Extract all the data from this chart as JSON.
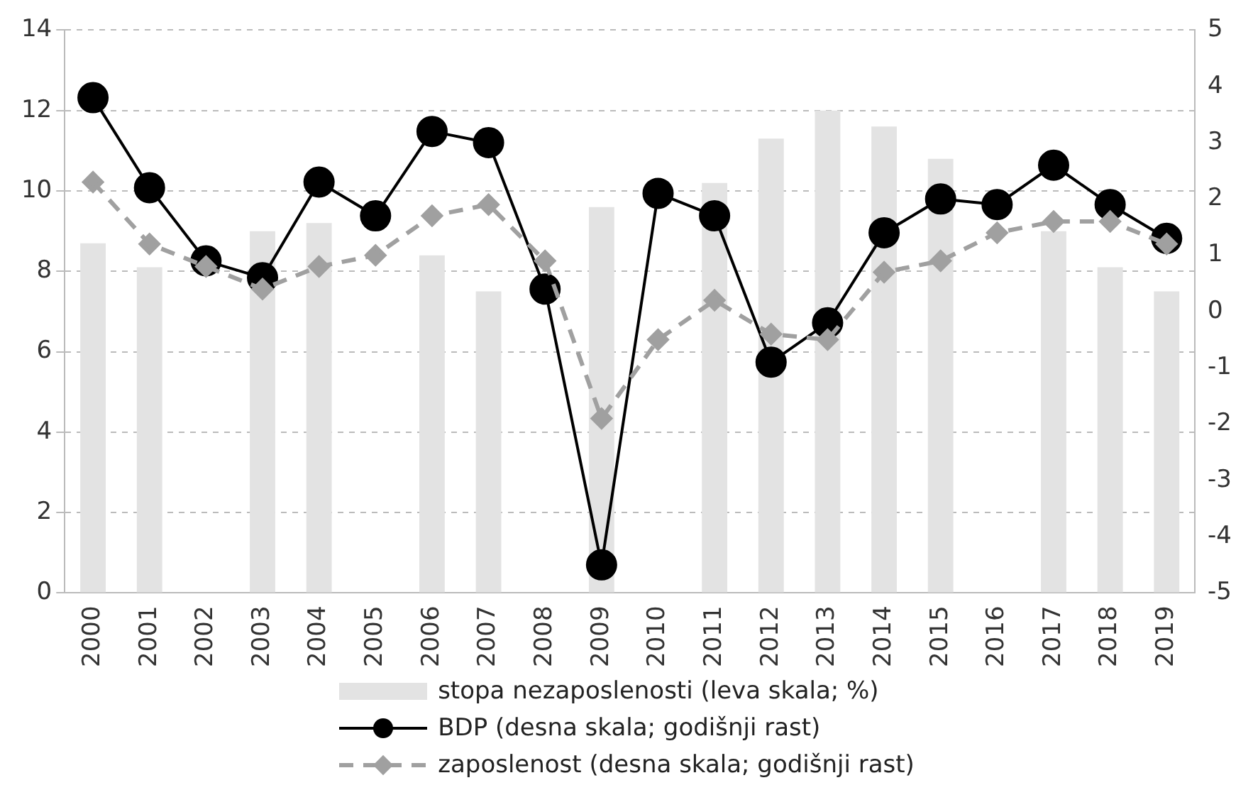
{
  "chart_data": {
    "type": "bar",
    "categories": [
      "2000",
      "2001",
      "2002",
      "2003",
      "2004",
      "2005",
      "2006",
      "2007",
      "2008",
      "2009",
      "2010",
      "2011",
      "2012",
      "2013",
      "2014",
      "2015",
      "2016",
      "2017",
      "2018",
      "2019"
    ],
    "series": [
      {
        "name": "stopa nezaposlenosti (leva skala; %)",
        "color": "#e3e3e3",
        "values": [
          8.7,
          8.1,
          null,
          9.0,
          9.2,
          null,
          8.4,
          7.5,
          null,
          9.6,
          null,
          10.2,
          11.3,
          12.0,
          11.6,
          10.8,
          null,
          9.0,
          8.1,
          7.5
        ]
      },
      {
        "name": "BDP (desna skala; godišnji rast)",
        "type": "line",
        "axis": "y2",
        "color": "#000000",
        "marker": "circle",
        "line_style": "solid",
        "values": [
          3.8,
          2.2,
          0.9,
          0.6,
          2.3,
          1.7,
          3.2,
          3.0,
          0.4,
          -4.5,
          2.1,
          1.7,
          -0.9,
          -0.2,
          1.4,
          2.0,
          1.9,
          2.6,
          1.9,
          1.3
        ]
      },
      {
        "name": "zaposlenost (desna skala; godišnji rast)",
        "type": "line",
        "axis": "y2",
        "color": "#a0a0a0",
        "marker": "diamond",
        "line_style": "dashed",
        "values": [
          2.3,
          1.2,
          0.8,
          0.4,
          0.8,
          1.0,
          1.7,
          1.9,
          0.9,
          -1.9,
          -0.5,
          0.2,
          -0.4,
          -0.5,
          0.7,
          0.9,
          1.4,
          1.6,
          1.6,
          1.2
        ]
      }
    ],
    "ylim": [
      0,
      14
    ],
    "yticks": [
      0,
      2,
      4,
      6,
      8,
      10,
      12,
      14
    ],
    "y2lim": [
      -5,
      5
    ],
    "y2ticks": [
      -5,
      -4,
      -3,
      -2,
      -1,
      0,
      1,
      2,
      3,
      4,
      5
    ],
    "grid": "y",
    "legend": "bottom"
  }
}
